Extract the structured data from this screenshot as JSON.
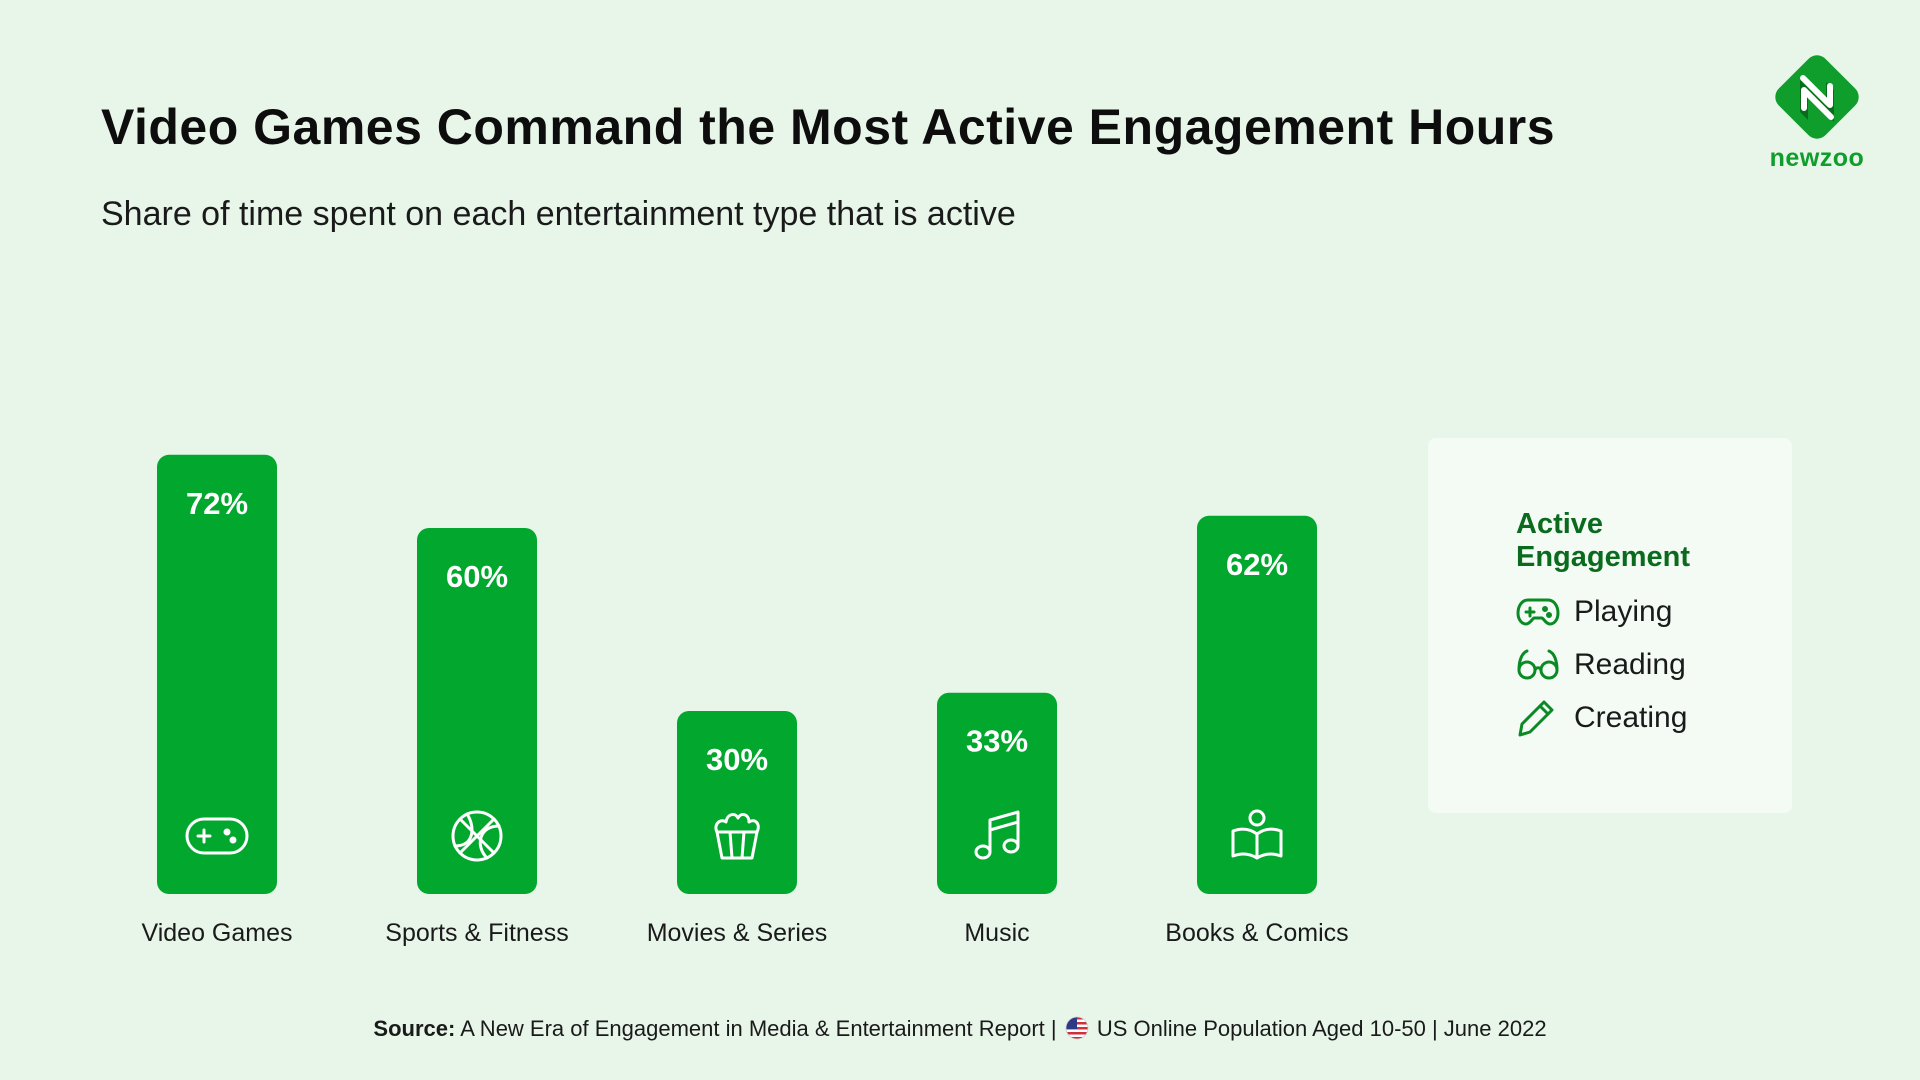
{
  "header": {
    "title": "Video Games Command the Most Active Engagement Hours",
    "subtitle": "Share of time spent on each entertainment type that is active"
  },
  "logo": {
    "text": "newzoo",
    "icon": "newzoo-logo-icon"
  },
  "legend": {
    "title": "Active Engagement",
    "items": [
      {
        "label": "Playing",
        "icon": "gamepad-icon"
      },
      {
        "label": "Reading",
        "icon": "glasses-icon"
      },
      {
        "label": "Creating",
        "icon": "pencil-icon"
      }
    ]
  },
  "source": {
    "label": "Source:",
    "text_before_flag": "A New Era of Engagement in Media & Entertainment Report |",
    "text_after_flag": "US Online Population Aged 10-50 | June 2022",
    "flag_icon": "us-flag-icon"
  },
  "colors": {
    "bar": "#02a82e",
    "background": "#e8f6ea",
    "legend_title": "#0a6b1e",
    "logo": "#0f9d2b"
  },
  "chart_data": {
    "type": "bar",
    "categories": [
      "Video Games",
      "Sports & Fitness",
      "Movies & Series",
      "Music",
      "Books & Comics"
    ],
    "values": [
      72,
      60,
      30,
      33,
      62
    ],
    "value_labels": [
      "72%",
      "60%",
      "30%",
      "33%",
      "62%"
    ],
    "icons": [
      "gamepad-icon",
      "basketball-icon",
      "popcorn-icon",
      "music-note-icon",
      "reading-book-icon"
    ],
    "title": "Video Games Command the Most Active Engagement Hours",
    "subtitle": "Share of time spent on each entertainment type that is active",
    "xlabel": "",
    "ylabel": "",
    "ylim": [
      0,
      100
    ],
    "grid": false
  }
}
